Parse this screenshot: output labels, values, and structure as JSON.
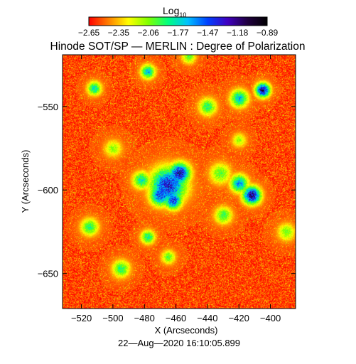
{
  "colorbar": {
    "label_main": "Log",
    "label_sub": "10",
    "tick_labels": [
      "−2.65",
      "−2.35",
      "−2.06",
      "−1.77",
      "−1.47",
      "−1.18",
      "−0.89"
    ]
  },
  "chart_data": {
    "type": "heatmap",
    "title": "Hinode SOT/SP — MERLIN : Degree of Polarization",
    "xlabel": "X (Arcseconds)",
    "ylabel": "Y (Arcseconds)",
    "xlim": [
      -532,
      -384
    ],
    "ylim": [
      -671,
      -519
    ],
    "x_ticks": [
      -520,
      -500,
      -480,
      -460,
      -440,
      -420,
      -400
    ],
    "x_tick_labels": [
      "−520",
      "−500",
      "−480",
      "−460",
      "−440",
      "−420",
      "−400"
    ],
    "y_ticks": [
      -550,
      -600,
      -650
    ],
    "y_tick_labels": [
      "−550",
      "−600",
      "−650"
    ],
    "color_scale": {
      "min": -2.65,
      "max": -0.89,
      "colors": [
        "#ff0000",
        "#ff8000",
        "#ffff00",
        "#80ff00",
        "#00ff80",
        "#00c0ff",
        "#0040ff",
        "#4000c0",
        "#200040",
        "#000000"
      ]
    },
    "background_level": -2.55,
    "hotspots": [
      {
        "x": -465,
        "y": -597,
        "r": 10,
        "peak": -1.35
      },
      {
        "x": -458,
        "y": -590,
        "r": 6,
        "peak": -1.25
      },
      {
        "x": -470,
        "y": -603,
        "r": 6,
        "peak": -1.45
      },
      {
        "x": -462,
        "y": -606,
        "r": 5,
        "peak": -1.4
      },
      {
        "x": -412,
        "y": -603,
        "r": 5,
        "peak": -1.2
      },
      {
        "x": -420,
        "y": -596,
        "r": 5,
        "peak": -1.6
      },
      {
        "x": -405,
        "y": -540,
        "r": 4,
        "peak": -1.2
      },
      {
        "x": -420,
        "y": -545,
        "r": 5,
        "peak": -1.7
      },
      {
        "x": -478,
        "y": -529,
        "r": 4,
        "peak": -1.7
      },
      {
        "x": -482,
        "y": -594,
        "r": 5,
        "peak": -1.8
      },
      {
        "x": -512,
        "y": -539,
        "r": 4,
        "peak": -1.8
      },
      {
        "x": -440,
        "y": -550,
        "r": 5,
        "peak": -1.9
      },
      {
        "x": -515,
        "y": -622,
        "r": 5,
        "peak": -1.9
      },
      {
        "x": -495,
        "y": -647,
        "r": 5,
        "peak": -1.9
      },
      {
        "x": -465,
        "y": -640,
        "r": 4,
        "peak": -2.0
      },
      {
        "x": -432,
        "y": -590,
        "r": 6,
        "peak": -2.0
      },
      {
        "x": -430,
        "y": -615,
        "r": 5,
        "peak": -1.95
      },
      {
        "x": -500,
        "y": -575,
        "r": 5,
        "peak": -2.1
      },
      {
        "x": -452,
        "y": -520,
        "r": 4,
        "peak": -2.0
      },
      {
        "x": -390,
        "y": -625,
        "r": 5,
        "peak": -2.05
      },
      {
        "x": -420,
        "y": -570,
        "r": 4,
        "peak": -2.1
      },
      {
        "x": -478,
        "y": -628,
        "r": 4,
        "peak": -1.85
      }
    ]
  },
  "footer": {
    "timestamp": "22—Aug—2020 16:10:05.899"
  }
}
